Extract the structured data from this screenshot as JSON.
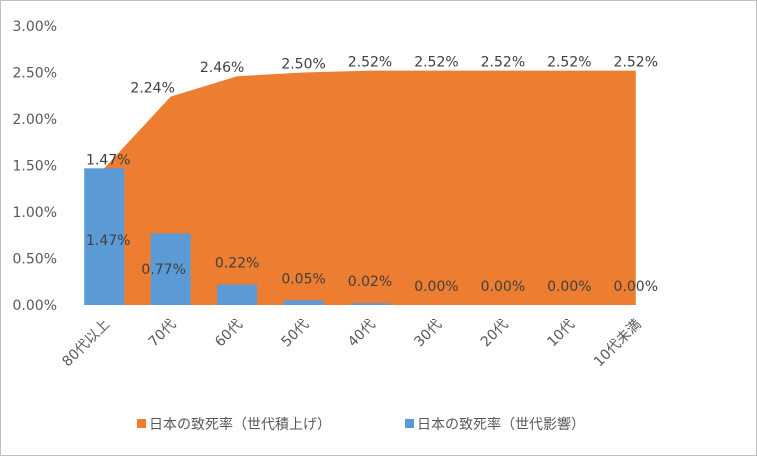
{
  "chart_data": {
    "type": "area",
    "title": "",
    "xlabel": "",
    "ylabel": "",
    "categories": [
      "80代以上",
      "70代",
      "60代",
      "50代",
      "40代",
      "30代",
      "20代",
      "10代",
      "10代未満"
    ],
    "ylim": [
      0,
      0.03
    ],
    "yticks": [
      "0.00%",
      "0.50%",
      "1.00%",
      "1.50%",
      "2.00%",
      "2.50%",
      "3.00%"
    ],
    "grid": false,
    "legend_position": "bottom",
    "series": [
      {
        "name": "日本の致死率（世代積上げ）",
        "kind": "area",
        "color": "#ED7D31",
        "values": [
          0.0147,
          0.0224,
          0.0246,
          0.025,
          0.0252,
          0.0252,
          0.0252,
          0.0252,
          0.0252
        ],
        "labels": [
          "1.47%",
          "2.24%",
          "2.46%",
          "2.50%",
          "2.52%",
          "2.52%",
          "2.52%",
          "2.52%",
          "2.52%"
        ]
      },
      {
        "name": "日本の致死率（世代影響）",
        "kind": "bar",
        "color": "#5B9BD5",
        "values": [
          0.0147,
          0.0077,
          0.0022,
          0.0005,
          0.0002,
          0.0,
          0.0,
          0.0,
          0.0
        ],
        "labels": [
          "1.47%",
          "0.77%",
          "0.22%",
          "0.05%",
          "0.02%",
          "0.00%",
          "0.00%",
          "0.00%",
          "0.00%"
        ]
      }
    ]
  }
}
